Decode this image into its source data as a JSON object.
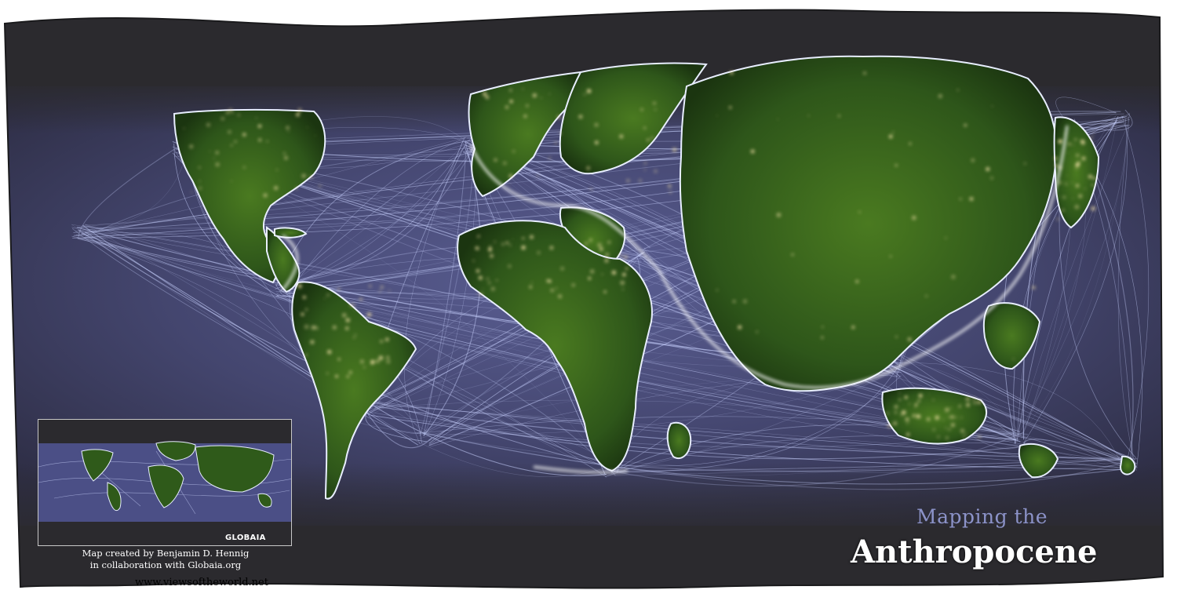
{
  "map": {
    "title_small": "Mapping the",
    "title_large": "Anthropocene",
    "credit_line1": "Map created by Benjamin D. Hennig",
    "credit_line2": "in collaboration with Globaia.org",
    "website": "www.viewsoftheworld.net",
    "inset_logo": "GLOBAIA"
  },
  "colors": {
    "background_frame": "#2b2a2e",
    "ocean": "#3e3e63",
    "shipping_routes": "#c9d2ff",
    "land": "#2f5a1a",
    "city_lights": "#f4e2a8",
    "title_small": "#8c93c9",
    "title_large": "#ffffff"
  }
}
